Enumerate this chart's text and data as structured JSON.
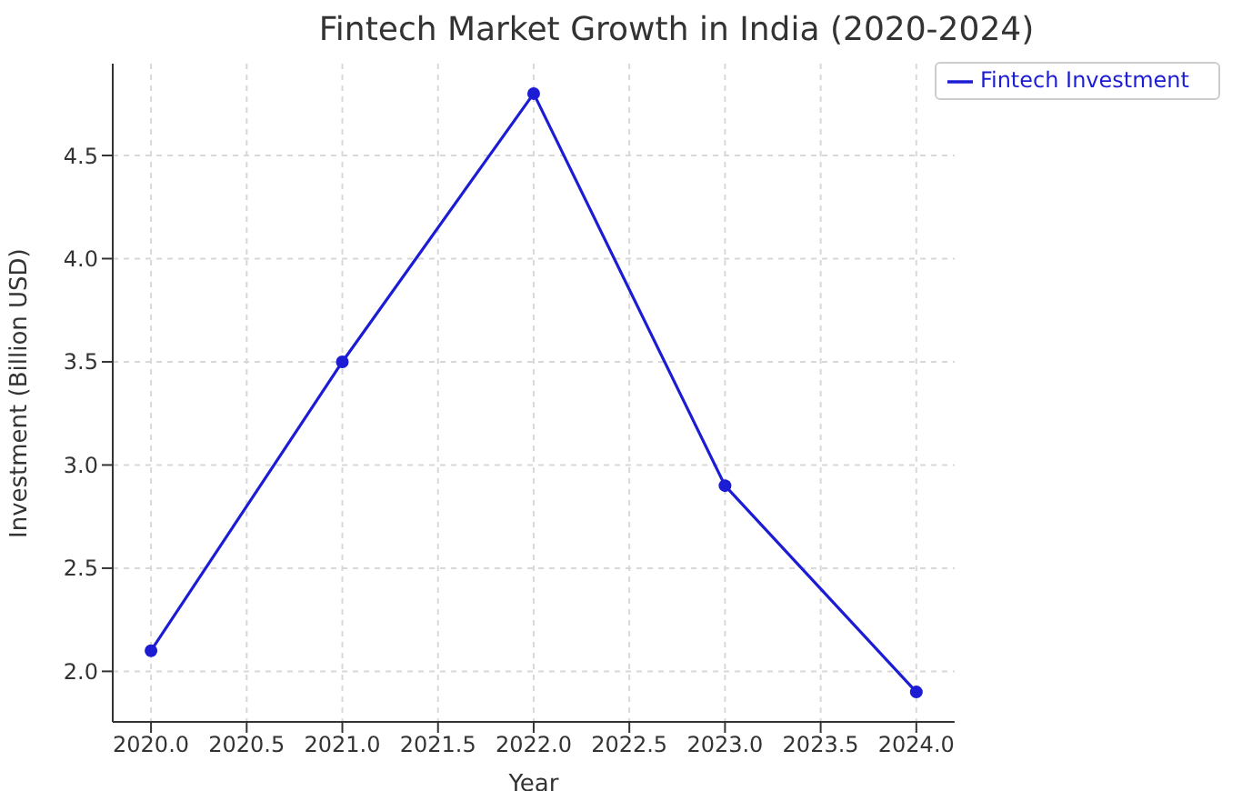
{
  "chart_data": {
    "type": "line",
    "title": "Fintech Market Growth in India (2020-2024)",
    "xlabel": "Year",
    "ylabel": "Investment (Billion USD)",
    "x": [
      2020,
      2021,
      2022,
      2023,
      2024
    ],
    "series": [
      {
        "name": "Fintech Investment",
        "color": "#1c1cd4",
        "values": [
          2.1,
          3.5,
          4.8,
          2.9,
          1.9
        ]
      }
    ],
    "xlim": [
      2019.8,
      2024.2
    ],
    "xticks": [
      {
        "value": 2020,
        "label": "2020.0"
      },
      {
        "value": 2020.5,
        "label": "2020.5"
      },
      {
        "value": 2021,
        "label": "2021.0"
      },
      {
        "value": 2021.5,
        "label": "2021.5"
      },
      {
        "value": 2022,
        "label": "2022.0"
      },
      {
        "value": 2022.5,
        "label": "2022.5"
      },
      {
        "value": 2023,
        "label": "2023.0"
      },
      {
        "value": 2023.5,
        "label": "2023.5"
      },
      {
        "value": 2024,
        "label": "2024.0"
      }
    ],
    "ylim": [
      1.755,
      4.945
    ],
    "yticks": [
      {
        "value": 2,
        "label": "2.0"
      },
      {
        "value": 2.5,
        "label": "2.5"
      },
      {
        "value": 3,
        "label": "3.0"
      },
      {
        "value": 3.5,
        "label": "3.5"
      },
      {
        "value": 4,
        "label": "4.0"
      },
      {
        "value": 4.5,
        "label": "4.5"
      }
    ],
    "grid": true,
    "legend": "top right",
    "marker": "circle",
    "line_style": "solid"
  }
}
